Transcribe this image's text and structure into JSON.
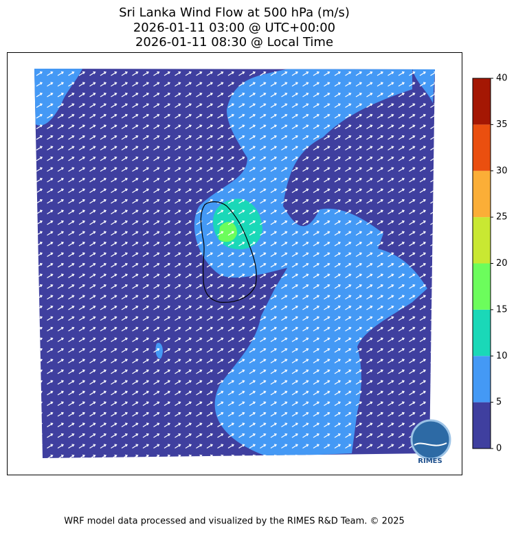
{
  "title": [
    "Sri Lanka Wind Flow at 500 hPa (m/s)",
    "2026-01-11 03:00 @ UTC+00:00",
    "2026-01-11 08:30 @ Local Time"
  ],
  "colorbar": {
    "ticks": [
      0,
      5,
      10,
      15,
      20,
      25,
      30,
      35,
      40
    ],
    "colors": [
      "#3f3f9f",
      "#4499f5",
      "#1ad8b8",
      "#6cfd5c",
      "#c9e832",
      "#fbae37",
      "#ea4f0f",
      "#a41703"
    ]
  },
  "logo": "RIMES",
  "footer": "WRF model data processed and visualized by the RIMES R&D Team. © 2025"
}
